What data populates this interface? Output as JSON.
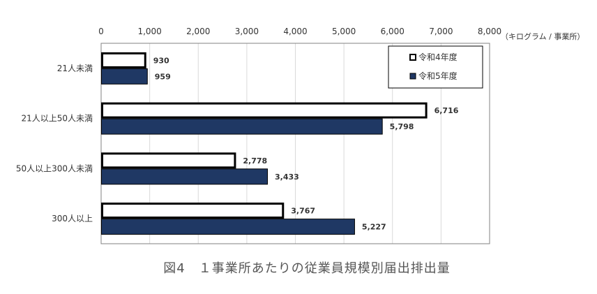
{
  "caption": "図4　１事業所あたりの従業員規模別届出排出量",
  "chart_data": {
    "type": "bar",
    "orientation": "horizontal",
    "categories": [
      "21人未満",
      "21人以上50人未満",
      "50人以上300人未満",
      "300人以上"
    ],
    "series": [
      {
        "name": "令和4年度",
        "values": [
          930,
          6716,
          2778,
          3767
        ],
        "color": "#ffffff",
        "stroke": "#000000"
      },
      {
        "name": "令和5年度",
        "values": [
          959,
          5798,
          3433,
          5227
        ],
        "color": "#1f3864",
        "stroke": "#000000"
      }
    ],
    "data_labels": [
      [
        "930",
        "6,716",
        "2,778",
        "3,767"
      ],
      [
        "959",
        "5,798",
        "3,433",
        "5,227"
      ]
    ],
    "xticks": [
      0,
      1000,
      2000,
      3000,
      4000,
      5000,
      6000,
      7000,
      8000
    ],
    "xtick_labels": [
      "0",
      "1,000",
      "2,000",
      "3,000",
      "4,000",
      "5,000",
      "6,000",
      "7,000",
      "8,000"
    ],
    "xlim": [
      0,
      8000
    ],
    "unit": "（キログラム / 事業所）",
    "grid": true,
    "axis_position": "top",
    "legend_position": "top-right",
    "legend_box": true
  }
}
